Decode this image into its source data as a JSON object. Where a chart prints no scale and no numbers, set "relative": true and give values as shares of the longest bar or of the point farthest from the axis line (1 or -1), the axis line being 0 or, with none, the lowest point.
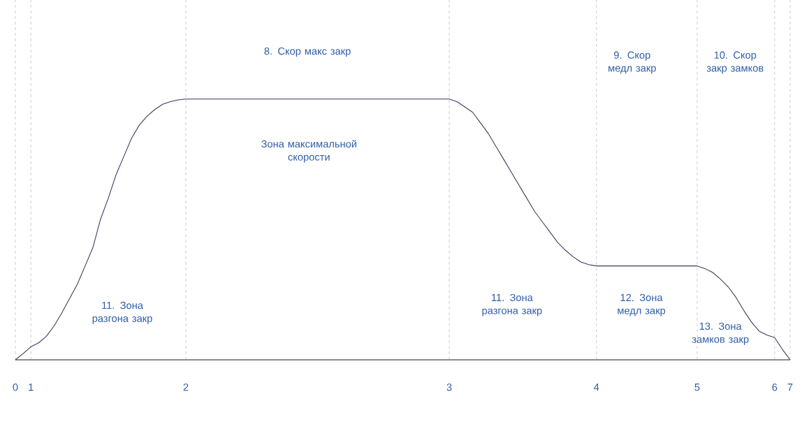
{
  "chart_data": {
    "type": "line",
    "relative": true,
    "color": "#3a3a5c",
    "categories": [
      "0",
      null,
      "1",
      null,
      null,
      null,
      null,
      null,
      null,
      null,
      null,
      null,
      null,
      null,
      null,
      null,
      null,
      null,
      null,
      null,
      null,
      null,
      "2",
      null,
      null,
      null,
      null,
      null,
      null,
      null,
      null,
      null,
      null,
      null,
      null,
      null,
      null,
      null,
      null,
      null,
      null,
      null,
      null,
      null,
      null,
      null,
      null,
      null,
      null,
      null,
      null,
      null,
      null,
      null,
      null,
      null,
      "3",
      null,
      null,
      null,
      null,
      null,
      null,
      null,
      null,
      null,
      null,
      null,
      null,
      null,
      null,
      null,
      null,
      null,
      null,
      "4",
      null,
      null,
      null,
      null,
      null,
      null,
      null,
      null,
      null,
      null,
      null,
      null,
      "5",
      null,
      null,
      null,
      null,
      null,
      null,
      null,
      null,
      null,
      "6",
      null,
      "7"
    ],
    "values": [
      0,
      0.024,
      0.05,
      0.065,
      0.09,
      0.13,
      0.18,
      0.235,
      0.29,
      0.36,
      0.43,
      0.54,
      0.62,
      0.71,
      0.78,
      0.85,
      0.9,
      0.935,
      0.96,
      0.98,
      0.99,
      0.997,
      1,
      1,
      1,
      1,
      1,
      1,
      1,
      1,
      1,
      1,
      1,
      1,
      1,
      1,
      1,
      1,
      1,
      1,
      1,
      1,
      1,
      1,
      1,
      1,
      1,
      1,
      1,
      1,
      1,
      1,
      1,
      1,
      1,
      1,
      1,
      0.99,
      0.97,
      0.95,
      0.91,
      0.87,
      0.82,
      0.77,
      0.72,
      0.67,
      0.62,
      0.57,
      0.53,
      0.49,
      0.45,
      0.42,
      0.395,
      0.375,
      0.365,
      0.36,
      0.36,
      0.36,
      0.36,
      0.36,
      0.36,
      0.36,
      0.36,
      0.36,
      0.36,
      0.36,
      0.36,
      0.36,
      0.36,
      0.35,
      0.335,
      0.31,
      0.28,
      0.24,
      0.19,
      0.145,
      0.11,
      0.095,
      0.085,
      0.04,
      0
    ],
    "grid": "x",
    "marker": "none",
    "line_style": "solid",
    "annotations": [
      "8. Скор макс закр",
      "Зона максимальной скорости",
      "9. Скор медл закр",
      "10. Скор закр замков",
      "11. Зона разгона закр",
      "11. Зона разгона закр",
      "12. Зона медл закр",
      "13. Зона замков закр"
    ]
  }
}
